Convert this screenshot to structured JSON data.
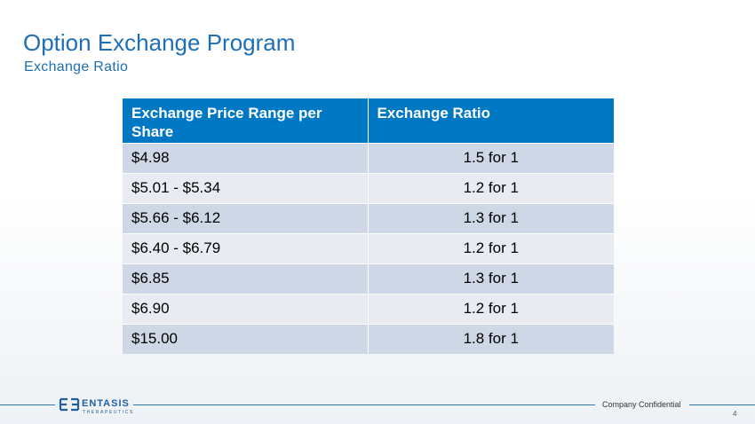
{
  "slide": {
    "title": "Option Exchange Program",
    "subtitle": "Exchange Ratio"
  },
  "table": {
    "headers": [
      "Exchange Price Range per Share",
      "Exchange Ratio"
    ],
    "rows": [
      {
        "price": "$4.98",
        "ratio": "1.5 for 1"
      },
      {
        "price": "$5.01 - $5.34",
        "ratio": "1.2 for 1"
      },
      {
        "price": "$5.66 - $6.12",
        "ratio": "1.3 for 1"
      },
      {
        "price": "$6.40 - $6.79",
        "ratio": "1.2 for 1"
      },
      {
        "price": "$6.85",
        "ratio": "1.3 for 1"
      },
      {
        "price": "$6.90",
        "ratio": "1.2 for 1"
      },
      {
        "price": "$15.00",
        "ratio": "1.8 for 1"
      }
    ]
  },
  "footer": {
    "logo_name": "ENTASIS",
    "logo_sub": "THERAPEUTICS",
    "confidential": "Company Confidential",
    "page_number": "4"
  },
  "colors": {
    "accent": "#1e6fb6",
    "header_bg": "#0078c3",
    "row_odd": "#cdd7e5",
    "row_even": "#e8ecf2"
  }
}
